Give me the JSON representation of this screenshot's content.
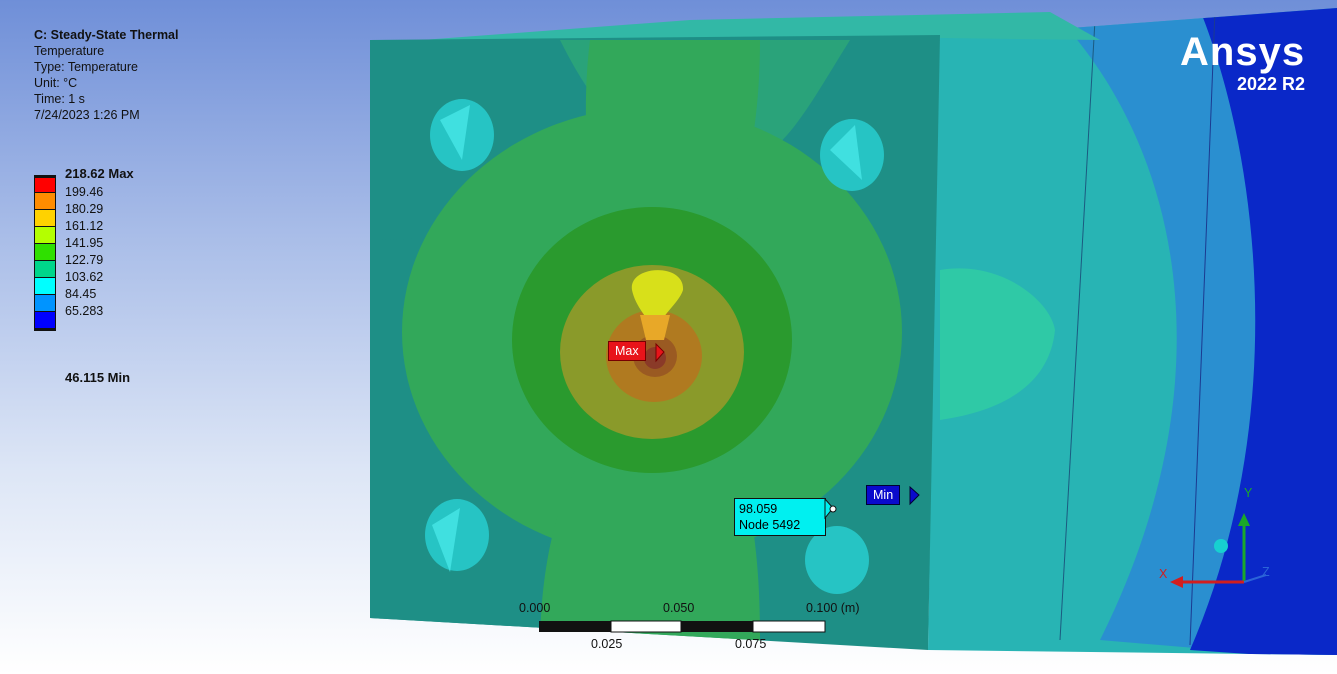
{
  "info": {
    "title": "C: Steady-State Thermal",
    "result": "Temperature",
    "type": "Type: Temperature",
    "unit": "Unit: °C",
    "time": "Time: 1 s",
    "date": "7/24/2023 1:26 PM"
  },
  "legend": {
    "max_label": "218.62 Max",
    "min_label": "46.115 Min",
    "values": [
      "199.46",
      "180.29",
      "161.12",
      "141.95",
      "122.79",
      "103.62",
      "84.45",
      "65.283"
    ],
    "colors": [
      "#ff0000",
      "#ff8c00",
      "#ffd200",
      "#b4ff00",
      "#2fe000",
      "#00d68a",
      "#00ffff",
      "#0094ff",
      "#0000ff"
    ]
  },
  "brand": {
    "name": "Ansys",
    "version": "2022 R2"
  },
  "probes": {
    "max": "Max",
    "min": "Min",
    "node_value": "98.059",
    "node_label": "Node 5492"
  },
  "scale_bar": {
    "top": [
      "0.000",
      "0.050",
      "0.100 (m)"
    ],
    "bottom": [
      "0.025",
      "0.075"
    ]
  },
  "triad": {
    "x": "X",
    "y": "Y",
    "z": "Z"
  }
}
